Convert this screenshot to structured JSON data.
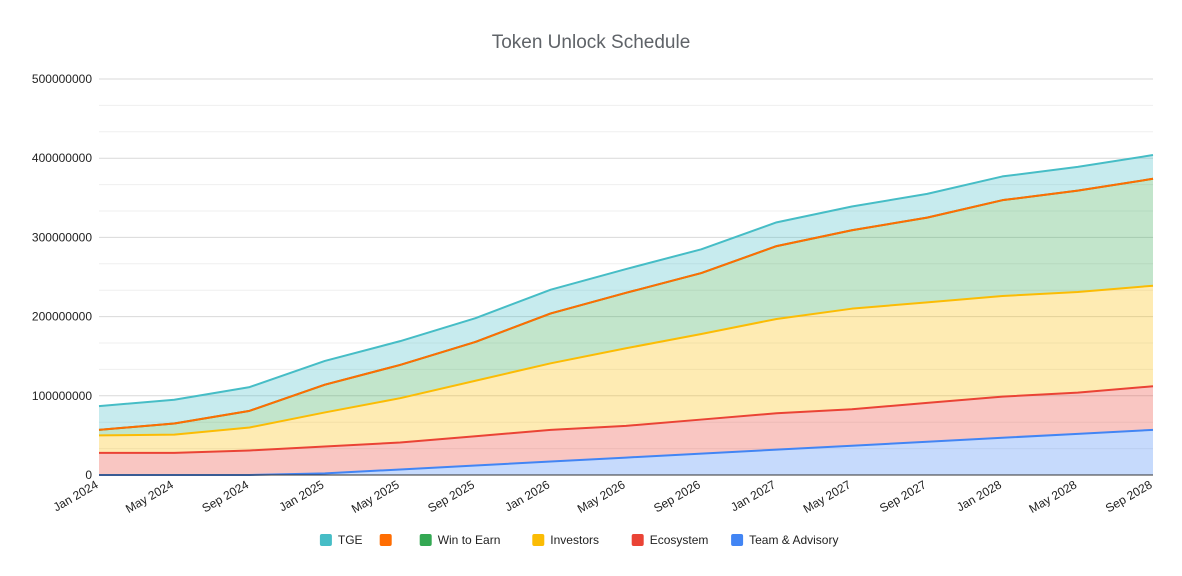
{
  "chart_data": {
    "type": "area",
    "stacked": true,
    "title": "Token Unlock Schedule",
    "xlabel": "",
    "ylabel": "",
    "categories": [
      "Jan 2024",
      "May 2024",
      "Sep 2024",
      "Jan 2025",
      "May 2025",
      "Sep 2025",
      "Jan 2026",
      "May 2026",
      "Sep 2026",
      "Jan 2027",
      "May 2027",
      "Sep 2027",
      "Jan 2028",
      "May 2028",
      "Sep 2028"
    ],
    "ylim": [
      0,
      500000000
    ],
    "yticks": [
      "0",
      "100000000",
      "200000000",
      "300000000",
      "400000000",
      "500000000"
    ],
    "grid": true,
    "legend_position": "bottom",
    "series": [
      {
        "name": "Team & Advisory",
        "color": "#4285f4",
        "values": [
          0,
          0,
          0,
          2000000,
          7000000,
          12000000,
          17000000,
          22000000,
          27000000,
          32000000,
          37000000,
          42000000,
          47000000,
          52000000,
          57000000
        ]
      },
      {
        "name": "Ecosystem",
        "color": "#ea4335",
        "values": [
          28000000,
          28000000,
          31000000,
          34000000,
          34000000,
          37000000,
          40000000,
          40000000,
          43000000,
          46000000,
          46000000,
          49000000,
          52000000,
          52000000,
          55000000
        ]
      },
      {
        "name": "Investors",
        "color": "#fbbc04",
        "values": [
          22000000,
          23000000,
          29000000,
          43000000,
          56000000,
          70000000,
          84000000,
          98000000,
          108000000,
          119000000,
          127000000,
          127000000,
          127000000,
          127000000,
          127000000
        ]
      },
      {
        "name": "Win to Earn",
        "color": "#34a853",
        "values": [
          7000000,
          14000000,
          21000000,
          35000000,
          42000000,
          49000000,
          63000000,
          70000000,
          77000000,
          92000000,
          99000000,
          107000000,
          121000000,
          128000000,
          135000000
        ]
      },
      {
        "name": "",
        "color": "#ff6d01",
        "values": [
          0,
          0,
          0,
          0,
          0,
          0,
          0,
          0,
          0,
          0,
          0,
          0,
          0,
          0,
          0
        ]
      },
      {
        "name": "TGE",
        "color": "#46bdc6",
        "values": [
          30000000,
          30000000,
          30000000,
          30000000,
          30000000,
          30000000,
          30000000,
          30000000,
          30000000,
          30000000,
          30000000,
          30000000,
          30000000,
          30000000,
          30000000
        ]
      }
    ],
    "legend": [
      {
        "name": "TGE",
        "color": "#46bdc6"
      },
      {
        "name": "",
        "color": "#ff6d01"
      },
      {
        "name": "Win to Earn",
        "color": "#34a853"
      },
      {
        "name": "Investors",
        "color": "#fbbc04"
      },
      {
        "name": "Ecosystem",
        "color": "#ea4335"
      },
      {
        "name": "Team & Advisory",
        "color": "#4285f4"
      }
    ]
  }
}
